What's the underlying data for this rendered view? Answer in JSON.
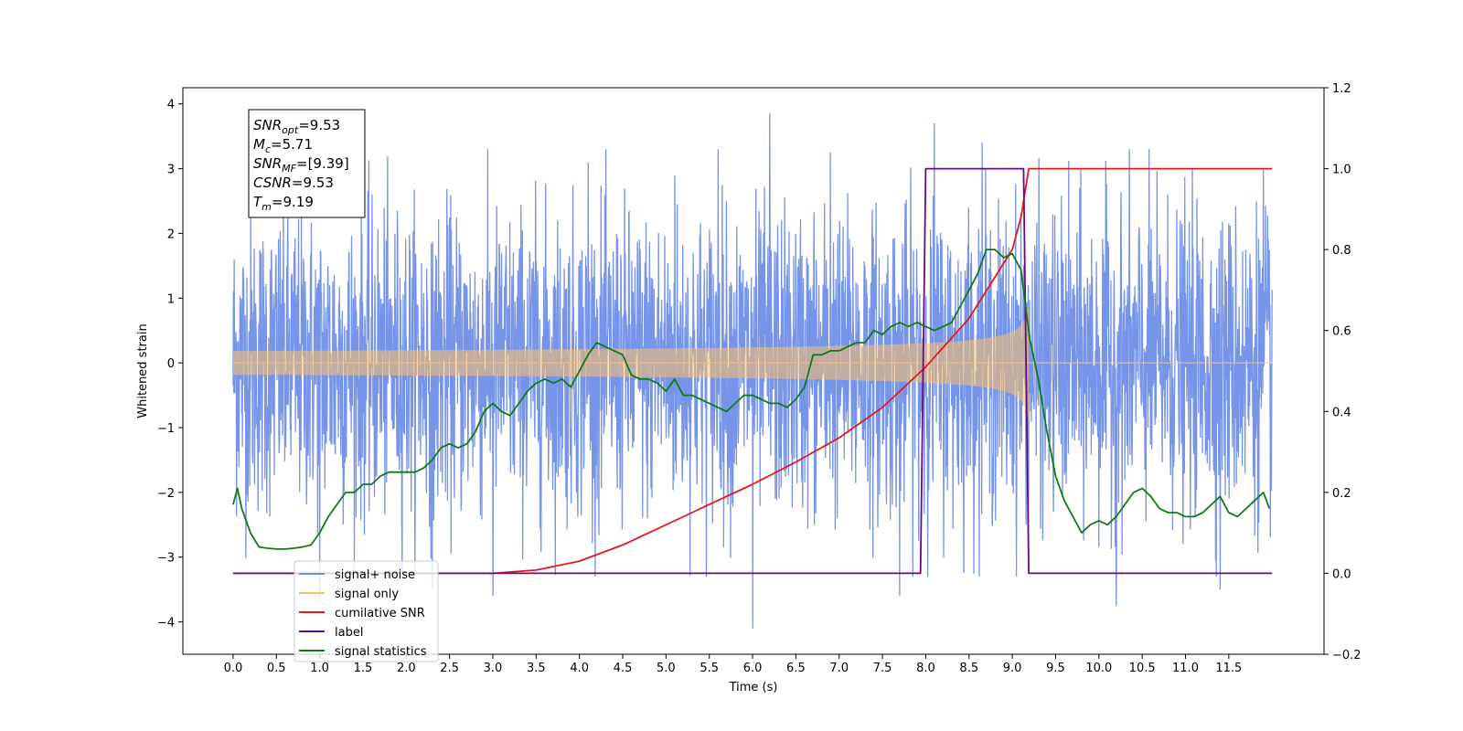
{
  "chart_data": {
    "type": "line",
    "xlabel": "Time (s)",
    "ylabel": "Whitened strain",
    "x_ticks": [
      0.0,
      0.5,
      1.0,
      1.5,
      2.0,
      2.5,
      3.0,
      3.5,
      4.0,
      4.5,
      5.0,
      5.5,
      6.0,
      6.5,
      7.0,
      7.5,
      8.0,
      8.5,
      9.0,
      9.5,
      10.0,
      10.5,
      11.0,
      11.5
    ],
    "x_tick_labels": [
      "0.0",
      "0.5",
      "1.0",
      "1.5",
      "2.0",
      "2.5",
      "3.0",
      "3.5",
      "4.0",
      "4.5",
      "5.0",
      "5.5",
      "6.0",
      "6.5",
      "7.0",
      "7.5",
      "8.0",
      "8.5",
      "9.0",
      "9.5",
      "10.0",
      "10.5",
      "11.0",
      "11.5"
    ],
    "xlim": [
      -0.58,
      12.6
    ],
    "left_ylim": [
      -4.5,
      4.25
    ],
    "left_y_ticks": [
      -4,
      -3,
      -2,
      -1,
      0,
      1,
      2,
      3,
      4
    ],
    "left_y_tick_labels": [
      "−4",
      "−3",
      "−2",
      "−1",
      "0",
      "1",
      "2",
      "3",
      "4"
    ],
    "right_ylim": [
      -0.2,
      1.2
    ],
    "right_y_ticks": [
      -0.2,
      0.0,
      0.2,
      0.4,
      0.6,
      0.8,
      1.0,
      1.2
    ],
    "right_y_tick_labels": [
      "−0.2",
      "0.0",
      "0.2",
      "0.4",
      "0.6",
      "0.8",
      "1.0",
      "1.2"
    ],
    "annotation": [
      {
        "main": "SNR",
        "sub": "opt",
        "rest": "=9.53"
      },
      {
        "main": "M",
        "sub": "c",
        "rest": "=5.71"
      },
      {
        "main": "SNR",
        "sub": "MF",
        "rest": "=[9.39]"
      },
      {
        "main": "CSNR",
        "sub": "",
        "rest": "=9.53"
      },
      {
        "main": "T",
        "sub": "m",
        "rest": "=9.19"
      }
    ],
    "legend": {
      "placement": "lower-left",
      "entries": [
        {
          "label": "signal+ noise",
          "color": "#6f8ee8"
        },
        {
          "label": "signal only",
          "color": "#ffbf66"
        },
        {
          "label": "cumilative SNR",
          "color": "#e41a1c"
        },
        {
          "label": "label",
          "color": "#6b0a7e"
        },
        {
          "label": "signal statistics",
          "color": "#137a13"
        }
      ]
    },
    "series": [
      {
        "name": "signal+ noise",
        "axis": "left",
        "color": "#6f8ee8",
        "t_start": 0.0,
        "t_end": 12.0,
        "envelope_sd": 1.15,
        "spike_peaks": [
          [
            1.0,
            -3.7
          ],
          [
            2.3,
            -3.5
          ],
          [
            3.0,
            -3.6
          ],
          [
            4.1,
            3.1
          ],
          [
            5.1,
            2.9
          ],
          [
            5.6,
            3.3
          ],
          [
            6.0,
            -4.1
          ],
          [
            6.2,
            3.85
          ],
          [
            6.9,
            3.25
          ],
          [
            7.7,
            -3.6
          ],
          [
            8.1,
            3.7
          ],
          [
            8.65,
            3.4
          ],
          [
            10.2,
            -3.75
          ],
          [
            11.4,
            -3.5
          ],
          [
            11.9,
            3.0
          ]
        ]
      },
      {
        "name": "signal only",
        "axis": "left",
        "color": "#ffbf66",
        "t_start": 0.0,
        "t_end": 12.0,
        "chirp_end": 9.19,
        "final_amplitude": 0.85
      },
      {
        "name": "cumilative SNR",
        "axis": "right",
        "color": "#e41a1c",
        "x": [
          0.0,
          3.0,
          3.5,
          4.0,
          4.5,
          5.0,
          5.5,
          6.0,
          6.5,
          7.0,
          7.5,
          8.0,
          8.5,
          9.0,
          9.1,
          9.19,
          12.0
        ],
        "y": [
          0.0,
          0.0,
          0.008,
          0.03,
          0.07,
          0.12,
          0.17,
          0.22,
          0.275,
          0.335,
          0.41,
          0.51,
          0.63,
          0.8,
          0.88,
          1.0,
          1.0
        ]
      },
      {
        "name": "label",
        "axis": "right",
        "color": "#6b0a7e",
        "x": [
          0.0,
          7.94,
          8.0,
          9.13,
          9.19,
          12.0
        ],
        "y": [
          0.0,
          0.0,
          1.0,
          1.0,
          0.0,
          0.0
        ]
      },
      {
        "name": "signal statistics",
        "axis": "right",
        "color": "#137a13",
        "x": [
          0.0,
          0.05,
          0.1,
          0.2,
          0.3,
          0.4,
          0.5,
          0.6,
          0.7,
          0.8,
          0.9,
          1.0,
          1.1,
          1.2,
          1.3,
          1.4,
          1.5,
          1.6,
          1.7,
          1.8,
          1.9,
          2.0,
          2.1,
          2.2,
          2.3,
          2.4,
          2.5,
          2.6,
          2.7,
          2.8,
          2.9,
          3.0,
          3.1,
          3.2,
          3.3,
          3.4,
          3.5,
          3.6,
          3.7,
          3.8,
          3.9,
          4.0,
          4.1,
          4.2,
          4.3,
          4.4,
          4.5,
          4.6,
          4.7,
          4.8,
          4.9,
          5.0,
          5.1,
          5.2,
          5.3,
          5.4,
          5.5,
          5.6,
          5.7,
          5.8,
          5.9,
          6.0,
          6.1,
          6.2,
          6.3,
          6.4,
          6.5,
          6.6,
          6.7,
          6.8,
          6.9,
          7.0,
          7.1,
          7.2,
          7.3,
          7.4,
          7.5,
          7.6,
          7.7,
          7.8,
          7.9,
          8.0,
          8.1,
          8.2,
          8.3,
          8.4,
          8.5,
          8.6,
          8.7,
          8.8,
          8.9,
          9.0,
          9.1,
          9.2,
          9.3,
          9.4,
          9.5,
          9.6,
          9.7,
          9.8,
          9.9,
          10.0,
          10.1,
          10.2,
          10.3,
          10.4,
          10.5,
          10.6,
          10.7,
          10.8,
          10.9,
          11.0,
          11.1,
          11.2,
          11.3,
          11.4,
          11.5,
          11.6,
          11.7,
          11.8,
          11.9,
          11.97
        ],
        "y": [
          0.17,
          0.21,
          0.16,
          0.1,
          0.065,
          0.062,
          0.06,
          0.06,
          0.062,
          0.065,
          0.07,
          0.1,
          0.14,
          0.17,
          0.2,
          0.2,
          0.22,
          0.22,
          0.24,
          0.25,
          0.25,
          0.25,
          0.25,
          0.26,
          0.28,
          0.31,
          0.32,
          0.31,
          0.32,
          0.35,
          0.4,
          0.42,
          0.4,
          0.39,
          0.42,
          0.45,
          0.47,
          0.48,
          0.47,
          0.48,
          0.46,
          0.5,
          0.54,
          0.57,
          0.56,
          0.55,
          0.54,
          0.49,
          0.48,
          0.48,
          0.47,
          0.45,
          0.48,
          0.44,
          0.44,
          0.43,
          0.42,
          0.41,
          0.4,
          0.42,
          0.44,
          0.44,
          0.43,
          0.42,
          0.42,
          0.41,
          0.43,
          0.46,
          0.54,
          0.54,
          0.55,
          0.55,
          0.56,
          0.57,
          0.57,
          0.6,
          0.59,
          0.61,
          0.62,
          0.61,
          0.62,
          0.61,
          0.6,
          0.61,
          0.62,
          0.66,
          0.7,
          0.74,
          0.8,
          0.8,
          0.78,
          0.79,
          0.75,
          0.58,
          0.48,
          0.35,
          0.24,
          0.18,
          0.14,
          0.1,
          0.12,
          0.13,
          0.12,
          0.14,
          0.17,
          0.2,
          0.21,
          0.19,
          0.16,
          0.15,
          0.15,
          0.14,
          0.14,
          0.15,
          0.17,
          0.19,
          0.15,
          0.14,
          0.16,
          0.18,
          0.2,
          0.16
        ]
      }
    ]
  }
}
